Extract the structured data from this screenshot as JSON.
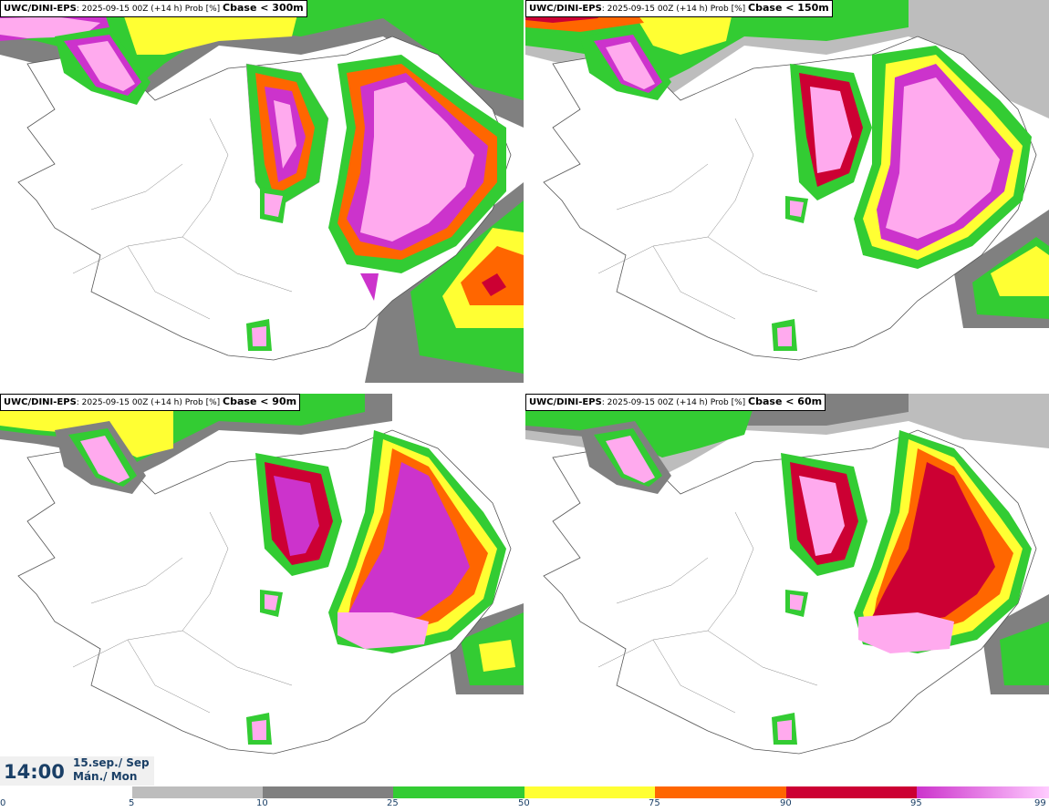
{
  "panels": [
    {
      "model": "UWC/DINI-EPS",
      "meta": ": 2025-09-15 00Z (+14 h) Prob [%] ",
      "threshold": "Cbase < 300m"
    },
    {
      "model": "UWC/DINI-EPS",
      "meta": ": 2025-09-15 00Z (+14 h) Prob [%] ",
      "threshold": "Cbase < 150m"
    },
    {
      "model": "UWC/DINI-EPS",
      "meta": ": 2025-09-15 00Z (+14 h) Prob [%] ",
      "threshold": "Cbase < 90m"
    },
    {
      "model": "UWC/DINI-EPS",
      "meta": ": 2025-09-15 00Z (+14 h) Prob [%] ",
      "threshold": "Cbase < 60m"
    }
  ],
  "valid_time": {
    "time": "14:00",
    "date_line1": "15.sep./ Sep",
    "date_line2": "Mán./ Mon"
  },
  "colorbar": {
    "ticks": [
      "0",
      "5",
      "10",
      "25",
      "50",
      "75",
      "90",
      "95",
      "99"
    ],
    "colors": [
      "#bdbdbd",
      "#808080",
      "#33cc33",
      "#ffff33",
      "#ff6600",
      "#cc0033",
      "#cc33cc"
    ],
    "top_gradient_end": "#ffccff"
  },
  "colors": {
    "low_grey": "#bdbdbd",
    "mid_grey": "#808080",
    "green": "#33cc33",
    "yellow": "#ffff33",
    "orange": "#ff6600",
    "red": "#cc0033",
    "magenta": "#cc33cc",
    "pink": "#ffaaee"
  }
}
